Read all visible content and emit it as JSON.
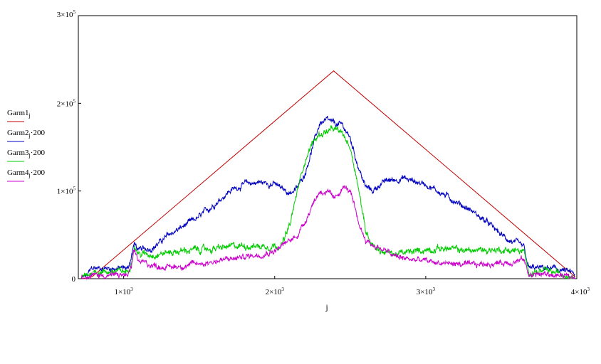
{
  "chart_data": {
    "type": "line",
    "xlabel": "j",
    "ylabel": "",
    "xlim": [
      700,
      4000
    ],
    "ylim": [
      0,
      300000
    ],
    "x_ticks": [
      {
        "value": 1000,
        "mantissa": "1×10",
        "exp": "3"
      },
      {
        "value": 2000,
        "mantissa": "2×10",
        "exp": "3"
      },
      {
        "value": 3000,
        "mantissa": "3×10",
        "exp": "3"
      },
      {
        "value": 4000,
        "mantissa": "4×10",
        "exp": "3"
      }
    ],
    "y_ticks": [
      {
        "value": 0,
        "mantissa": "0",
        "exp": ""
      },
      {
        "value": 100000,
        "mantissa": "1×10",
        "exp": "5"
      },
      {
        "value": 200000,
        "mantissa": "2×10",
        "exp": "5"
      },
      {
        "value": 300000,
        "mantissa": "3×10",
        "exp": "5"
      }
    ],
    "grid": false,
    "legend_position": "left",
    "series": [
      {
        "name": "Garm1",
        "subscript": "j",
        "suffix": "",
        "color": "#c00000",
        "noise": 0,
        "x": [
          720,
          790,
          2390,
          3990
        ],
        "values": [
          0,
          2000,
          237000,
          2000
        ]
      },
      {
        "name": "Garm2",
        "subscript": "j",
        "suffix": "·200",
        "color": "#0000c0",
        "noise": 3500,
        "x": [
          720,
          760,
          790,
          1030,
          1050,
          1070,
          1100,
          1200,
          1300,
          1400,
          1500,
          1600,
          1700,
          1800,
          1900,
          2000,
          2050,
          2100,
          2150,
          2200,
          2250,
          2300,
          2350,
          2400,
          2450,
          2500,
          2550,
          2600,
          2650,
          2700,
          2750,
          2800,
          2850,
          2900,
          3000,
          3100,
          3200,
          3300,
          3400,
          3500,
          3550,
          3600,
          3650,
          3680,
          3700,
          3800,
          3900,
          3990
        ],
        "values": [
          0,
          4000,
          12000,
          12000,
          25000,
          40000,
          32000,
          36000,
          50000,
          60000,
          70000,
          85000,
          100000,
          108000,
          110000,
          108000,
          102000,
          98000,
          103000,
          120000,
          150000,
          178000,
          180000,
          176000,
          175000,
          160000,
          130000,
          105000,
          100000,
          108000,
          112000,
          113000,
          115000,
          112000,
          108000,
          98000,
          88000,
          78000,
          65000,
          50000,
          44000,
          40000,
          35000,
          12000,
          12000,
          12000,
          10000,
          5000
        ]
      },
      {
        "name": "Garm3",
        "subscript": "j",
        "suffix": "·200",
        "color": "#00cc00",
        "noise": 4000,
        "x": [
          720,
          760,
          790,
          1030,
          1050,
          1070,
          1100,
          1200,
          1300,
          1400,
          1500,
          1600,
          1700,
          1800,
          1900,
          2000,
          2050,
          2100,
          2150,
          2200,
          2250,
          2300,
          2350,
          2400,
          2450,
          2500,
          2550,
          2600,
          2650,
          2700,
          2800,
          2900,
          3000,
          3100,
          3200,
          3300,
          3400,
          3500,
          3600,
          3650,
          3680,
          3700,
          3800,
          3900,
          3990
        ],
        "values": [
          0,
          3000,
          8000,
          8000,
          20000,
          38000,
          28000,
          28000,
          30000,
          32000,
          33000,
          34000,
          36000,
          38000,
          37000,
          38000,
          40000,
          60000,
          100000,
          135000,
          155000,
          165000,
          168000,
          170000,
          165000,
          150000,
          110000,
          55000,
          40000,
          32000,
          28000,
          30000,
          33000,
          35000,
          33000,
          32000,
          33000,
          33000,
          32000,
          30000,
          8000,
          8000,
          8000,
          6000,
          3000
        ]
      },
      {
        "name": "Garm4",
        "subscript": "j",
        "suffix": "·200",
        "color": "#cc00cc",
        "noise": 3500,
        "x": [
          720,
          760,
          790,
          1030,
          1050,
          1070,
          1100,
          1200,
          1300,
          1400,
          1500,
          1600,
          1700,
          1800,
          1900,
          2000,
          2050,
          2100,
          2150,
          2200,
          2250,
          2300,
          2350,
          2400,
          2450,
          2500,
          2550,
          2600,
          2650,
          2700,
          2800,
          2900,
          3000,
          3100,
          3200,
          3300,
          3400,
          3500,
          3600,
          3650,
          3680,
          3700,
          3800,
          3900,
          3990
        ],
        "values": [
          0,
          2000,
          4000,
          4000,
          12000,
          30000,
          20000,
          15000,
          13000,
          15000,
          17000,
          20000,
          22000,
          25000,
          28000,
          32000,
          38000,
          43000,
          50000,
          65000,
          85000,
          100000,
          98000,
          90000,
          105000,
          100000,
          65000,
          45000,
          38000,
          35000,
          25000,
          22000,
          20000,
          18000,
          17000,
          15000,
          17000,
          18000,
          20000,
          22000,
          5000,
          5000,
          5000,
          3000,
          1000
        ]
      }
    ]
  }
}
